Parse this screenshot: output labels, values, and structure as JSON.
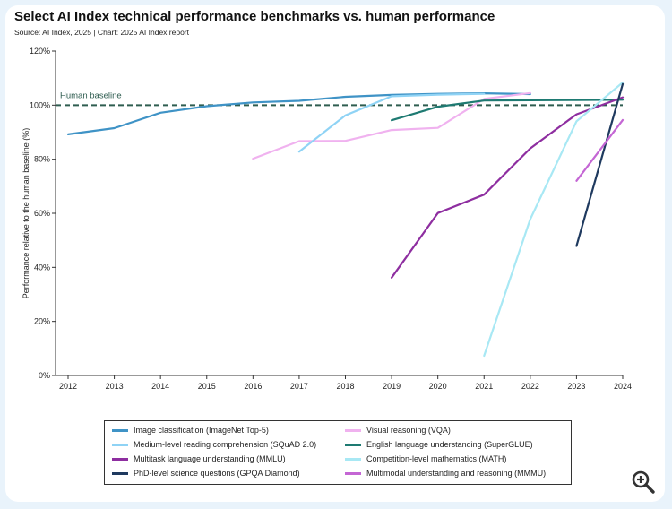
{
  "title": "Select AI Index technical performance benchmarks vs. human performance",
  "subtitle": "Source: AI Index, 2025 | Chart: 2025 AI Index report",
  "zoom_icon": "zoom-in-icon",
  "chart_data": {
    "type": "line",
    "xlabel": "",
    "ylabel": "Performance relative to the human baseline (%)",
    "xlim": [
      2012,
      2024
    ],
    "ylim": [
      0,
      120
    ],
    "x_ticks": [
      "2012",
      "2013",
      "2014",
      "2015",
      "2016",
      "2017",
      "2018",
      "2019",
      "2020",
      "2021",
      "2022",
      "2023",
      "2024"
    ],
    "y_ticks": [
      "0%",
      "20%",
      "40%",
      "60%",
      "80%",
      "100%",
      "120%"
    ],
    "grid": false,
    "legend_position": "bottom",
    "reference_line": {
      "label": "Human baseline",
      "value": 100,
      "color": "#2f5d50"
    },
    "series": [
      {
        "name": "Image classification (ImageNet Top-5)",
        "color": "#3f93c6",
        "x": [
          2012,
          2013,
          2014,
          2015,
          2016,
          2017,
          2018,
          2019,
          2020,
          2021,
          2022
        ],
        "y": [
          89.2,
          91.5,
          97.2,
          99.6,
          101.0,
          101.6,
          103.1,
          103.8,
          104.2,
          104.4,
          104.1
        ]
      },
      {
        "name": "Visual reasoning (VQA)",
        "color": "#f0b2ef",
        "x": [
          2016,
          2017,
          2018,
          2019,
          2020,
          2021,
          2022
        ],
        "y": [
          80.2,
          86.7,
          86.8,
          90.8,
          91.6,
          102.3,
          104.5
        ]
      },
      {
        "name": "Medium-level reading comprehension (SQuAD 2.0)",
        "color": "#8fd3f5",
        "x": [
          2017,
          2018,
          2019,
          2020,
          2021
        ],
        "y": [
          82.8,
          96.2,
          103.3,
          103.9,
          104.2
        ]
      },
      {
        "name": "English language understanding (SuperGLUE)",
        "color": "#1e7a72",
        "x": [
          2019,
          2020,
          2021,
          2022,
          2023,
          2024
        ],
        "y": [
          94.4,
          99.4,
          101.7,
          101.8,
          101.9,
          102.0
        ]
      },
      {
        "name": "Multitask language understanding (MMLU)",
        "color": "#8e2ea0",
        "x": [
          2019,
          2020,
          2021,
          2022,
          2023,
          2024
        ],
        "y": [
          36.2,
          60.1,
          66.9,
          84.0,
          96.6,
          102.9
        ]
      },
      {
        "name": "Competition-level mathematics (MATH)",
        "color": "#a8e8f4",
        "x": [
          2021,
          2022,
          2023,
          2024
        ],
        "y": [
          7.3,
          57.8,
          94.0,
          108.4
        ]
      },
      {
        "name": "PhD-level science questions (GPQA Diamond)",
        "color": "#1f3a5f",
        "x": [
          2023,
          2024
        ],
        "y": [
          47.9,
          107.8
        ]
      },
      {
        "name": "Multimodal understanding and reasoning (MMMU)",
        "color": "#c466d4",
        "x": [
          2023,
          2024
        ],
        "y": [
          72.0,
          94.5
        ]
      }
    ]
  }
}
